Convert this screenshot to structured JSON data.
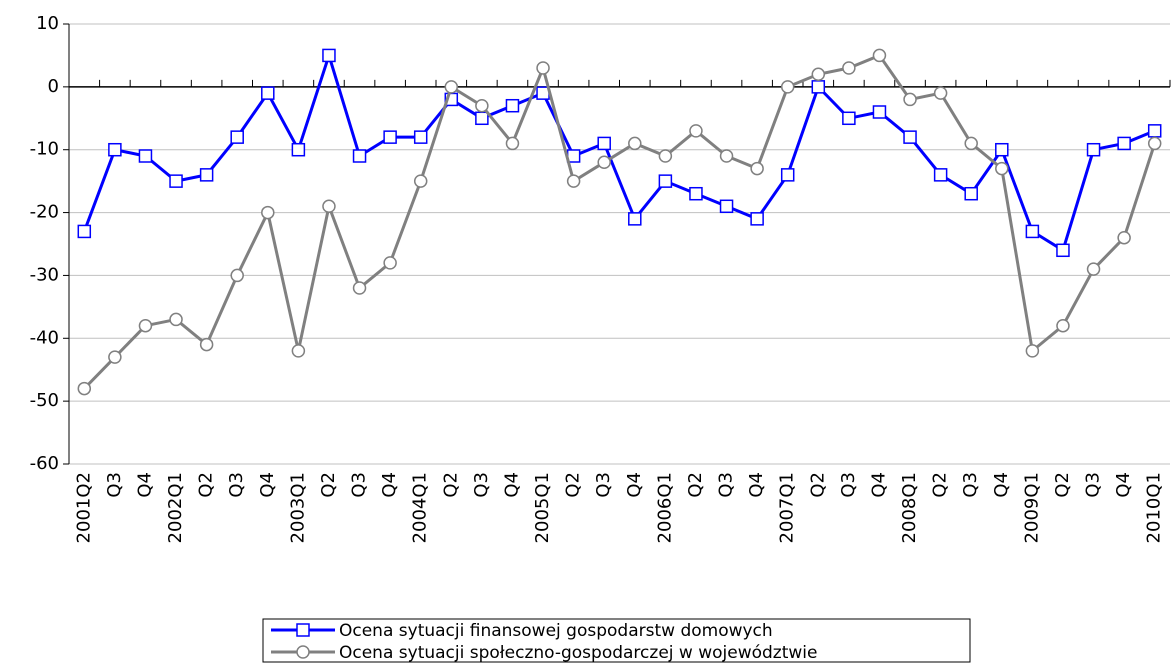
{
  "chart_data": {
    "type": "line",
    "categories": [
      "2001Q2",
      "Q3",
      "Q4",
      "2002Q1",
      "Q2",
      "Q3",
      "Q4",
      "2003Q1",
      "Q2",
      "Q3",
      "Q4",
      "2004Q1",
      "Q2",
      "Q3",
      "Q4",
      "2005Q1",
      "Q2",
      "Q3",
      "Q4",
      "2006Q1",
      "Q2",
      "Q3",
      "Q4",
      "2007Q1",
      "Q2",
      "Q3",
      "Q4",
      "2008Q1",
      "Q2",
      "Q3",
      "Q4",
      "2009Q1",
      "Q2",
      "Q3",
      "Q4",
      "2010Q1"
    ],
    "series": [
      {
        "name": "Ocena sytuacji finansowej gospodarstw domowych",
        "color": "#0000ff",
        "marker": "square",
        "values": [
          -23,
          -10,
          -11,
          -15,
          -14,
          -8,
          -1,
          -10,
          5,
          -11,
          -8,
          -8,
          -2,
          -5,
          -3,
          -1,
          -11,
          -9,
          -21,
          -15,
          -17,
          -19,
          -21,
          -14,
          0,
          -5,
          -4,
          -8,
          -14,
          -17,
          -10,
          -23,
          -26,
          -10,
          -9,
          -7
        ]
      },
      {
        "name": "Ocena sytuacji społeczno-gospodarczej w województwie",
        "color": "#808080",
        "marker": "circle",
        "values": [
          -48,
          -43,
          -38,
          -37,
          -41,
          -30,
          -20,
          -42,
          -19,
          -32,
          -28,
          -15,
          0,
          -3,
          -9,
          3,
          -15,
          -12,
          -9,
          -11,
          -7,
          -11,
          -13,
          0,
          2,
          3,
          5,
          -2,
          -1,
          -9,
          -13,
          -42,
          -38,
          -29,
          -24,
          -9
        ]
      }
    ],
    "ylim": [
      -60,
      10
    ],
    "yticks": [
      10,
      0,
      -10,
      -20,
      -30,
      -40,
      -50,
      -60
    ],
    "grid": true
  }
}
